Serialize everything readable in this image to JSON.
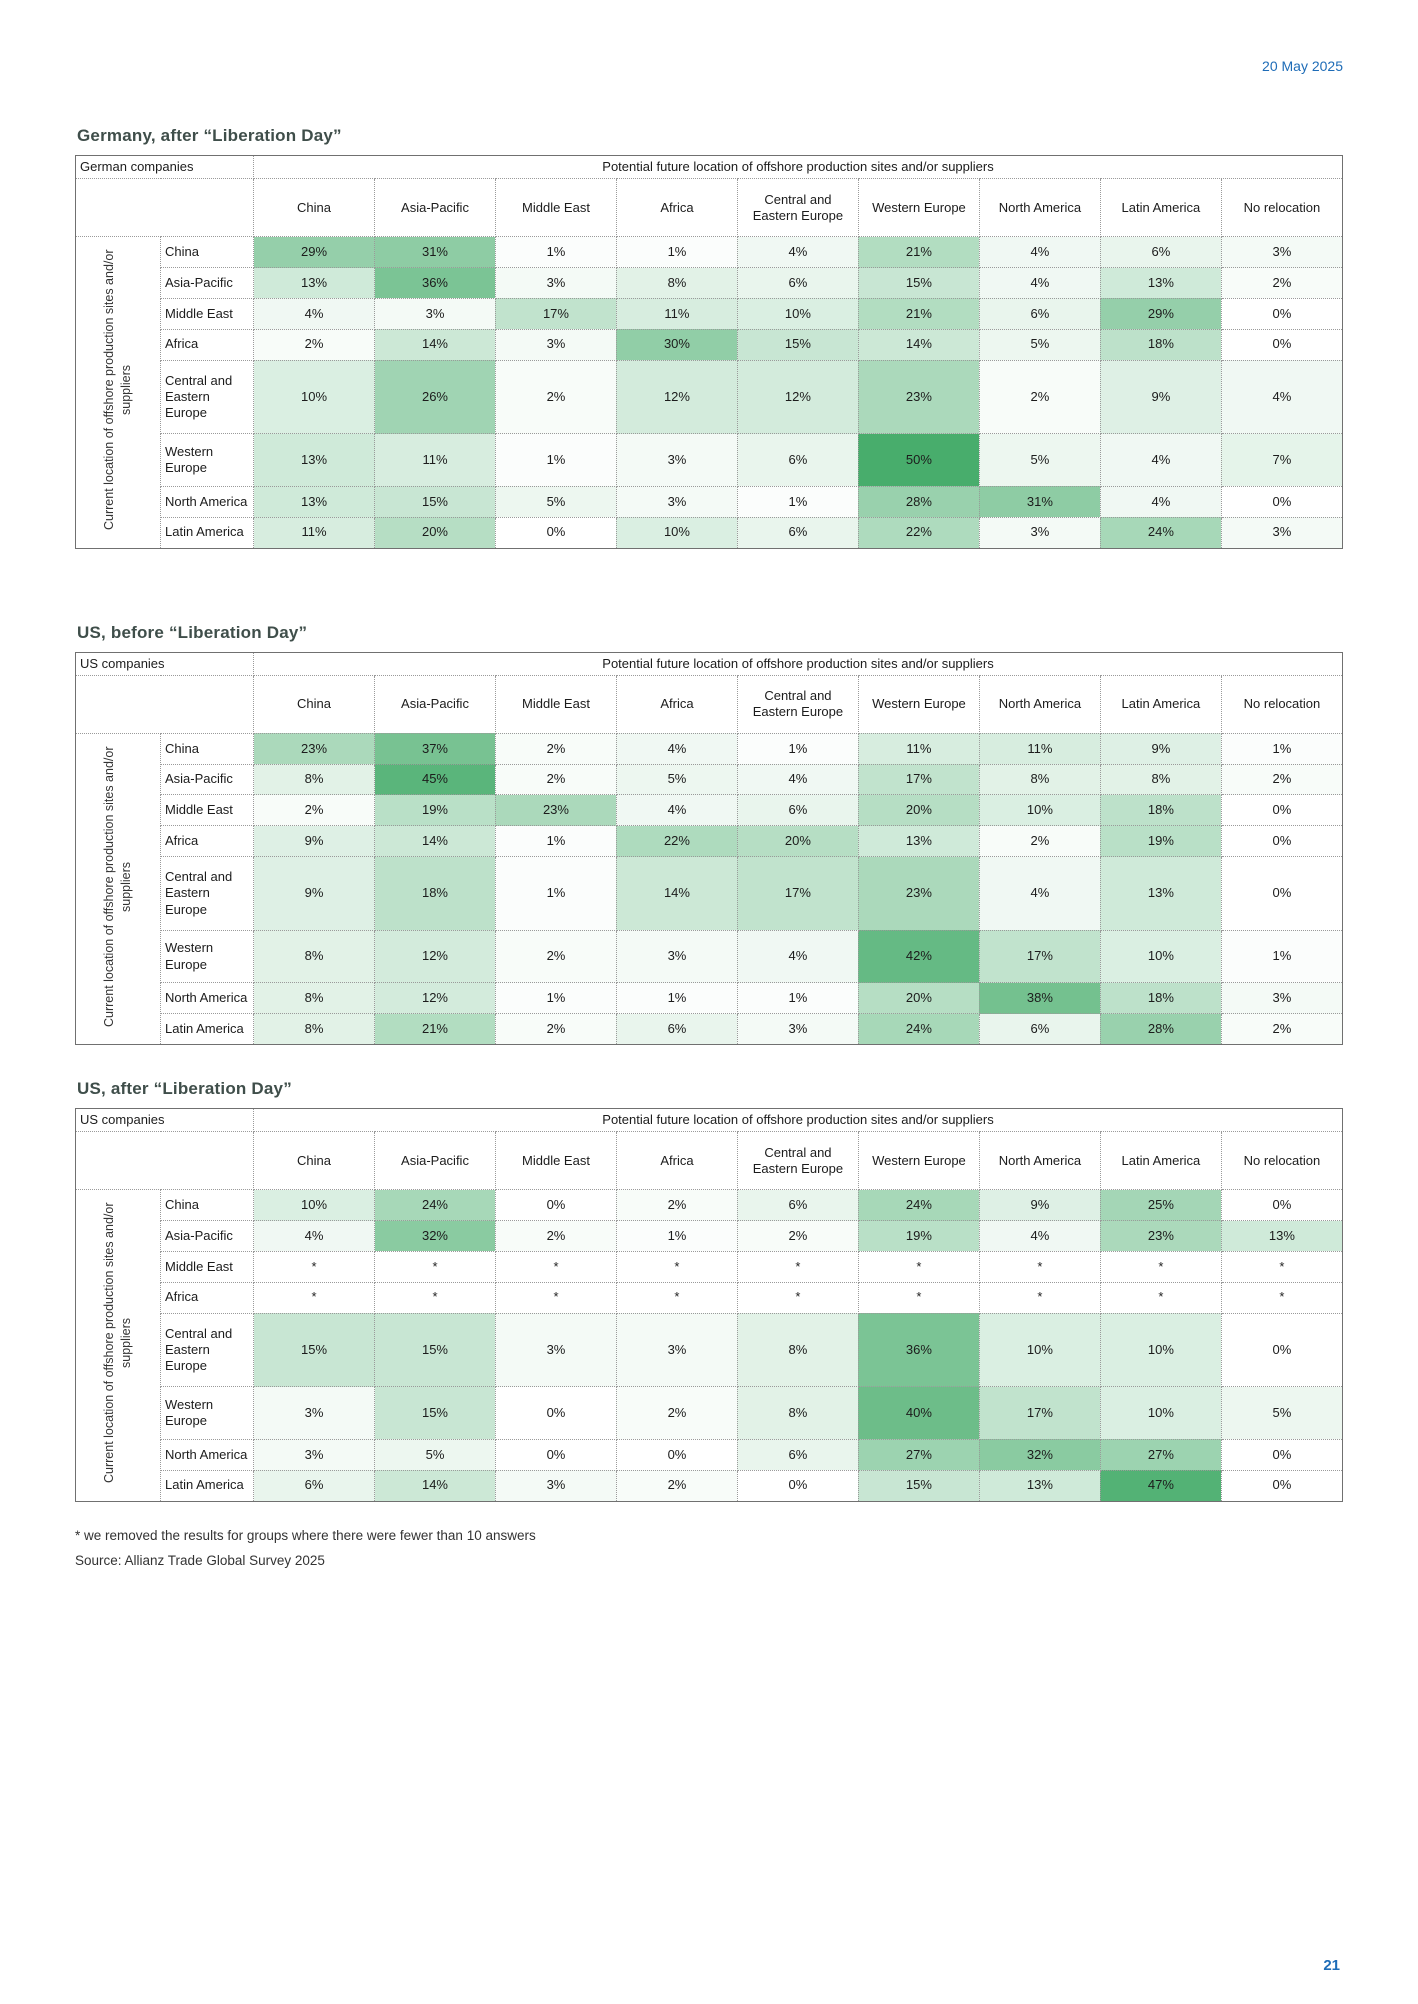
{
  "page": {
    "date": "20 May 2025",
    "page_number": "21",
    "footnote_asterisk": "* we removed the results for groups where there were fewer than 10 answers",
    "source": "Source: Allianz Trade Global Survey 2025"
  },
  "shared": {
    "row_axis_label": "Current location of offshore production sites and/or suppliers",
    "col_axis_label": "Potential future location of offshore production sites and/or suppliers",
    "columns": [
      "China",
      "Asia-Pacific",
      "Middle East",
      "Africa",
      "Central and Eastern Europe",
      "Western Europe",
      "North America",
      "Latin America",
      "No relocation"
    ],
    "rows": [
      "China",
      "Asia-Pacific",
      "Middle East",
      "Africa",
      "Central and Eastern Europe",
      "Western Europe",
      "North America",
      "Latin America"
    ],
    "heat_color_max": "#48ad6c",
    "heat_scale_max_percent": 50
  },
  "tables": [
    {
      "id": "germany-after-liberation-day",
      "title": "Germany, after “Liberation Day”",
      "corner_label": "German companies",
      "values": [
        [
          "29%",
          "31%",
          "1%",
          "1%",
          "4%",
          "21%",
          "4%",
          "6%",
          "3%"
        ],
        [
          "13%",
          "36%",
          "3%",
          "8%",
          "6%",
          "15%",
          "4%",
          "13%",
          "2%"
        ],
        [
          "4%",
          "3%",
          "17%",
          "11%",
          "10%",
          "21%",
          "6%",
          "29%",
          "0%"
        ],
        [
          "2%",
          "14%",
          "3%",
          "30%",
          "15%",
          "14%",
          "5%",
          "18%",
          "0%"
        ],
        [
          "10%",
          "26%",
          "2%",
          "12%",
          "12%",
          "23%",
          "2%",
          "9%",
          "4%"
        ],
        [
          "13%",
          "11%",
          "1%",
          "3%",
          "6%",
          "50%",
          "5%",
          "4%",
          "7%"
        ],
        [
          "13%",
          "15%",
          "5%",
          "3%",
          "1%",
          "28%",
          "31%",
          "4%",
          "0%"
        ],
        [
          "11%",
          "20%",
          "0%",
          "10%",
          "6%",
          "22%",
          "3%",
          "24%",
          "3%"
        ]
      ]
    },
    {
      "id": "us-before-liberation-day",
      "title": "US, before “Liberation Day”",
      "corner_label": "US companies",
      "values": [
        [
          "23%",
          "37%",
          "2%",
          "4%",
          "1%",
          "11%",
          "11%",
          "9%",
          "1%"
        ],
        [
          "8%",
          "45%",
          "2%",
          "5%",
          "4%",
          "17%",
          "8%",
          "8%",
          "2%"
        ],
        [
          "2%",
          "19%",
          "23%",
          "4%",
          "6%",
          "20%",
          "10%",
          "18%",
          "0%"
        ],
        [
          "9%",
          "14%",
          "1%",
          "22%",
          "20%",
          "13%",
          "2%",
          "19%",
          "0%"
        ],
        [
          "9%",
          "18%",
          "1%",
          "14%",
          "17%",
          "23%",
          "4%",
          "13%",
          "0%"
        ],
        [
          "8%",
          "12%",
          "2%",
          "3%",
          "4%",
          "42%",
          "17%",
          "10%",
          "1%"
        ],
        [
          "8%",
          "12%",
          "1%",
          "1%",
          "1%",
          "20%",
          "38%",
          "18%",
          "3%"
        ],
        [
          "8%",
          "21%",
          "2%",
          "6%",
          "3%",
          "24%",
          "6%",
          "28%",
          "2%"
        ]
      ]
    },
    {
      "id": "us-after-liberation-day",
      "title": "US, after “Liberation Day”",
      "corner_label": "US companies",
      "values": [
        [
          "10%",
          "24%",
          "0%",
          "2%",
          "6%",
          "24%",
          "9%",
          "25%",
          "0%"
        ],
        [
          "4%",
          "32%",
          "2%",
          "1%",
          "2%",
          "19%",
          "4%",
          "23%",
          "13%"
        ],
        [
          "*",
          "*",
          "*",
          "*",
          "*",
          "*",
          "*",
          "*",
          "*"
        ],
        [
          "*",
          "*",
          "*",
          "*",
          "*",
          "*",
          "*",
          "*",
          "*"
        ],
        [
          "15%",
          "15%",
          "3%",
          "3%",
          "8%",
          "36%",
          "10%",
          "10%",
          "0%"
        ],
        [
          "3%",
          "15%",
          "0%",
          "2%",
          "8%",
          "40%",
          "17%",
          "10%",
          "5%"
        ],
        [
          "3%",
          "5%",
          "0%",
          "0%",
          "6%",
          "27%",
          "32%",
          "27%",
          "0%"
        ],
        [
          "6%",
          "14%",
          "3%",
          "2%",
          "0%",
          "15%",
          "13%",
          "47%",
          "0%"
        ]
      ]
    }
  ]
}
